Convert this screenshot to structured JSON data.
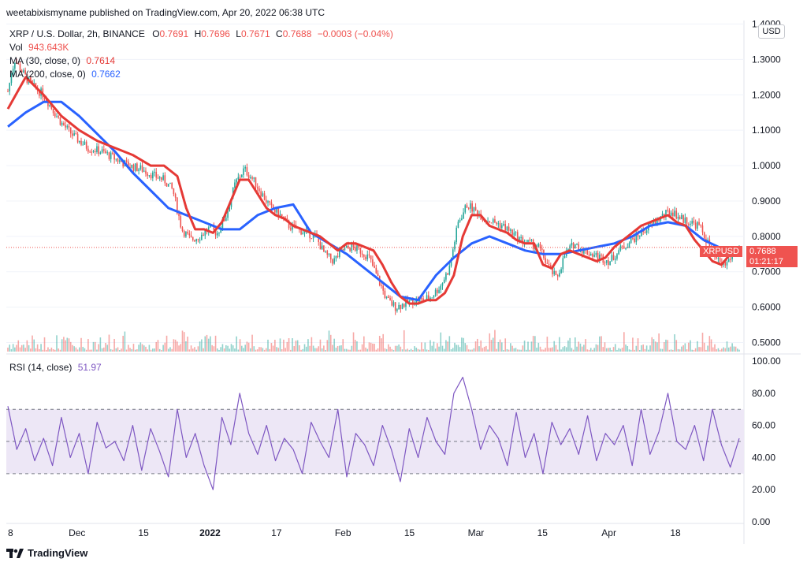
{
  "header": {
    "published_text": "weetabixismyname published on TradingView.com, Apr 20, 2022 06:38 UTC"
  },
  "legend": {
    "symbol": "XRP / U.S. Dollar, 2h, BINANCE",
    "o_label": "O",
    "o_value": "0.7691",
    "h_label": "H",
    "h_value": "0.7696",
    "l_label": "L",
    "l_value": "0.7671",
    "c_label": "C",
    "c_value": "0.7688",
    "change": "−0.0003 (−0.04%)",
    "vol_label": "Vol",
    "vol_value": "943.643K",
    "ma30_label": "MA (30, close, 0)",
    "ma30_value": "0.7614",
    "ma200_label": "MA (200, close, 0)",
    "ma200_value": "0.7662",
    "rsi_label": "RSI (14, close)",
    "rsi_value": "51.97"
  },
  "currency_badge": "USD",
  "price_tag": {
    "ticker": "XRPUSD",
    "price": "0.7688",
    "countdown": "01:21:17"
  },
  "footer": {
    "brand": "TradingView"
  },
  "colors": {
    "up": "#26a69a",
    "down": "#ef5350",
    "ma30": "#e53935",
    "ma200": "#2962ff",
    "rsi": "#7e57c2",
    "rsi_band": "#ede7f6",
    "tag": "#ef5350"
  },
  "chart_data": [
    {
      "type": "line",
      "title": "XRP / U.S. Dollar, 2h, BINANCE",
      "x_ticks": [
        "8",
        "Dec",
        "15",
        "2022",
        "17",
        "Feb",
        "15",
        "Mar",
        "15",
        "Apr",
        "18"
      ],
      "y_ticks": [
        "0.5000",
        "0.6000",
        "0.7000",
        "0.8000",
        "0.9000",
        "1.0000",
        "1.1000",
        "1.2000",
        "1.3000",
        "1.4000"
      ],
      "ylim": [
        0.47,
        1.41
      ],
      "x_range": [
        0,
        164
      ],
      "series": [
        {
          "name": "XRPUSD",
          "x": [
            0,
            1.5,
            3,
            4.5,
            6,
            8,
            10,
            12,
            15,
            18,
            21,
            24,
            27,
            30,
            33,
            35,
            37,
            39,
            41,
            43,
            45,
            47,
            49,
            51,
            53,
            55,
            57,
            59,
            61,
            63,
            65,
            67,
            69,
            71,
            73,
            75,
            77,
            79,
            81,
            83,
            85,
            87,
            89,
            91,
            93,
            95,
            97,
            99,
            101,
            103,
            105,
            107,
            109,
            111,
            113,
            115,
            117,
            119,
            121,
            123,
            125,
            127,
            129,
            131,
            133,
            135,
            137,
            139,
            141,
            143,
            145,
            147,
            149,
            151,
            153,
            155,
            157,
            159,
            161,
            163,
            164
          ],
          "values": [
            1.21,
            1.3,
            1.27,
            1.24,
            1.22,
            1.2,
            1.16,
            1.12,
            1.08,
            1.05,
            1.04,
            1.02,
            1.0,
            0.99,
            0.97,
            0.96,
            0.93,
            0.82,
            0.79,
            0.8,
            0.82,
            0.81,
            0.86,
            0.95,
            0.99,
            0.96,
            0.92,
            0.88,
            0.86,
            0.83,
            0.82,
            0.81,
            0.8,
            0.75,
            0.73,
            0.76,
            0.77,
            0.76,
            0.74,
            0.68,
            0.62,
            0.6,
            0.61,
            0.62,
            0.62,
            0.63,
            0.66,
            0.71,
            0.84,
            0.89,
            0.87,
            0.85,
            0.84,
            0.83,
            0.81,
            0.79,
            0.78,
            0.77,
            0.72,
            0.68,
            0.75,
            0.78,
            0.76,
            0.75,
            0.74,
            0.73,
            0.76,
            0.78,
            0.8,
            0.82,
            0.84,
            0.86,
            0.87,
            0.85,
            0.84,
            0.83,
            0.78,
            0.73,
            0.72,
            0.76,
            0.7688
          ]
        },
        {
          "name": "MA (30, close, 0)",
          "x": [
            0,
            4,
            8,
            12,
            16,
            20,
            24,
            28,
            32,
            35,
            38,
            40,
            42,
            44,
            46,
            48,
            50,
            52,
            54,
            56,
            58,
            60,
            62,
            64,
            66,
            68,
            70,
            72,
            74,
            76,
            78,
            80,
            82,
            84,
            86,
            88,
            90,
            92,
            94,
            96,
            98,
            100,
            102,
            104,
            106,
            108,
            110,
            112,
            114,
            116,
            118,
            120,
            122,
            124,
            126,
            128,
            130,
            132,
            134,
            136,
            138,
            140,
            142,
            144,
            146,
            148,
            150,
            152,
            154,
            156,
            158,
            160,
            162,
            164
          ],
          "values": [
            1.16,
            1.25,
            1.2,
            1.14,
            1.1,
            1.07,
            1.05,
            1.03,
            1.0,
            1.0,
            0.97,
            0.88,
            0.82,
            0.82,
            0.81,
            0.84,
            0.9,
            0.96,
            0.96,
            0.92,
            0.88,
            0.86,
            0.85,
            0.83,
            0.82,
            0.81,
            0.8,
            0.78,
            0.76,
            0.78,
            0.78,
            0.77,
            0.76,
            0.72,
            0.67,
            0.63,
            0.61,
            0.61,
            0.62,
            0.62,
            0.64,
            0.69,
            0.8,
            0.86,
            0.86,
            0.83,
            0.82,
            0.81,
            0.79,
            0.78,
            0.78,
            0.72,
            0.71,
            0.75,
            0.76,
            0.75,
            0.74,
            0.73,
            0.74,
            0.77,
            0.79,
            0.81,
            0.83,
            0.84,
            0.85,
            0.86,
            0.84,
            0.83,
            0.79,
            0.76,
            0.73,
            0.72,
            0.75,
            0.7614
          ]
        },
        {
          "name": "MA (200, close, 0)",
          "x": [
            0,
            4,
            8,
            12,
            16,
            20,
            24,
            28,
            32,
            36,
            40,
            44,
            48,
            52,
            56,
            60,
            64,
            68,
            72,
            76,
            80,
            84,
            88,
            92,
            96,
            100,
            104,
            108,
            112,
            116,
            120,
            124,
            128,
            132,
            136,
            140,
            144,
            148,
            152,
            156,
            160,
            164
          ],
          "values": [
            1.11,
            1.15,
            1.18,
            1.18,
            1.14,
            1.09,
            1.04,
            0.98,
            0.93,
            0.88,
            0.86,
            0.84,
            0.82,
            0.82,
            0.86,
            0.88,
            0.89,
            0.81,
            0.78,
            0.75,
            0.71,
            0.67,
            0.63,
            0.62,
            0.69,
            0.74,
            0.78,
            0.8,
            0.78,
            0.76,
            0.75,
            0.75,
            0.76,
            0.77,
            0.78,
            0.8,
            0.83,
            0.84,
            0.83,
            0.79,
            0.7662,
            0.7662
          ]
        }
      ]
    },
    {
      "type": "line",
      "title": "RSI (14, close)",
      "y_ticks": [
        "0.00",
        "20.00",
        "40.00",
        "60.00",
        "80.00",
        "100.00"
      ],
      "ylim": [
        0,
        102
      ],
      "bands": [
        30,
        50,
        70
      ],
      "x_range": [
        0,
        164
      ],
      "series": [
        {
          "name": "RSI (14, close)",
          "x": [
            0,
            2,
            4,
            6,
            8,
            10,
            12,
            14,
            16,
            18,
            20,
            22,
            24,
            26,
            28,
            30,
            32,
            34,
            36,
            38,
            40,
            42,
            44,
            46,
            48,
            50,
            52,
            54,
            56,
            58,
            60,
            62,
            64,
            66,
            68,
            70,
            72,
            74,
            76,
            78,
            80,
            82,
            84,
            86,
            88,
            90,
            92,
            94,
            96,
            98,
            100,
            102,
            104,
            106,
            108,
            110,
            112,
            114,
            116,
            118,
            120,
            122,
            124,
            126,
            128,
            130,
            132,
            134,
            136,
            138,
            140,
            142,
            144,
            146,
            148,
            150,
            152,
            154,
            156,
            158,
            160,
            162,
            164
          ],
          "values": [
            72,
            45,
            58,
            38,
            52,
            35,
            65,
            40,
            55,
            30,
            62,
            46,
            50,
            38,
            60,
            32,
            58,
            44,
            28,
            70,
            40,
            55,
            35,
            20,
            65,
            48,
            80,
            55,
            42,
            60,
            38,
            52,
            45,
            30,
            62,
            50,
            40,
            70,
            28,
            55,
            48,
            35,
            60,
            45,
            25,
            58,
            40,
            65,
            50,
            42,
            80,
            90,
            70,
            45,
            60,
            52,
            35,
            68,
            40,
            55,
            30,
            62,
            48,
            58,
            42,
            66,
            38,
            55,
            48,
            60,
            35,
            70,
            42,
            56,
            80,
            50,
            45,
            60,
            38,
            70,
            48,
            34,
            52
          ]
        }
      ]
    }
  ]
}
